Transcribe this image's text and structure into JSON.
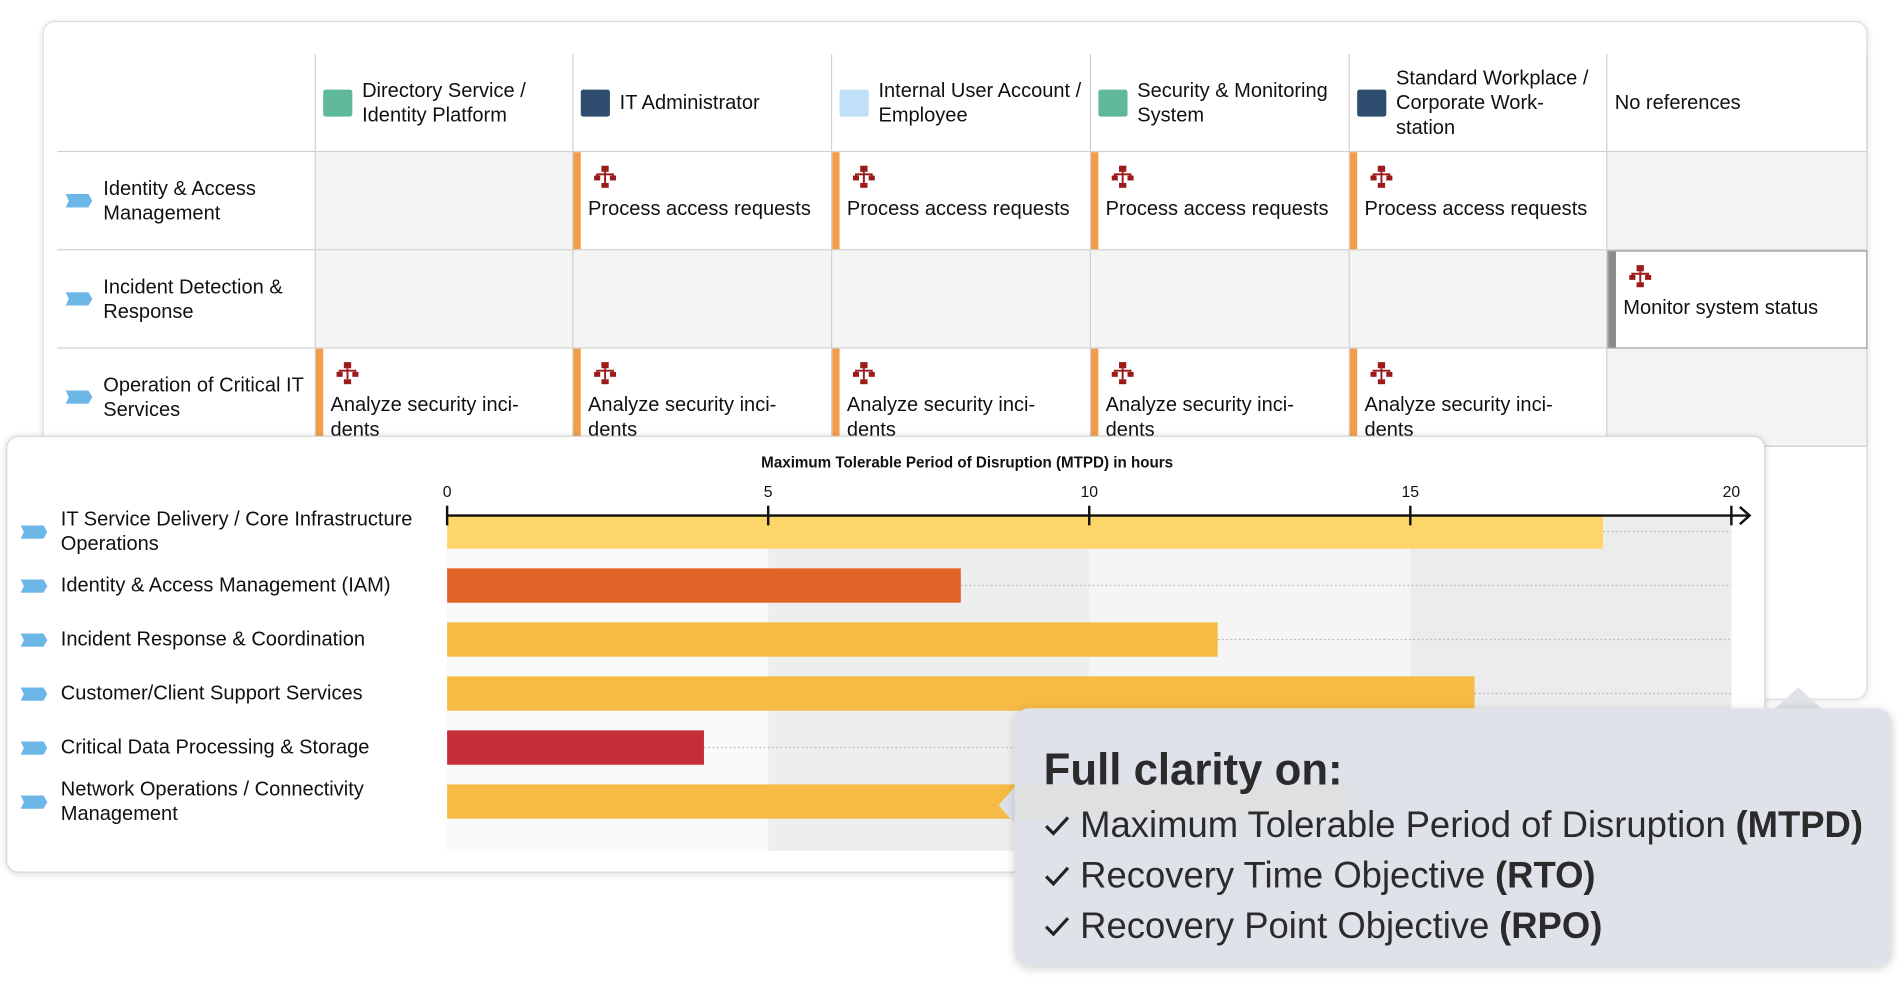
{
  "matrix": {
    "columns": [
      "Directory Service / Identity Platform",
      "IT Administrator",
      "Internal User Account / Employee",
      "Security & Monitoring System",
      "Standard Workplace / Corporate Work-station",
      "No references"
    ],
    "rows": [
      {
        "label": "Identity & Access Management",
        "cells": [
          null,
          "Process access requests",
          "Process access requests",
          "Process access requests",
          "Process access requests",
          null
        ]
      },
      {
        "label": "Incident Detection & Response",
        "cells": [
          null,
          null,
          null,
          null,
          null,
          "Monitor system status"
        ]
      },
      {
        "label": "Operation of Critical IT Services",
        "cells": [
          "Analyze security inci-dents",
          "Analyze security inci-dents",
          "Analyze security inci-dents",
          "Analyze security inci-dents",
          "Analyze security inci-dents",
          null
        ]
      }
    ]
  },
  "chart_data": {
    "type": "bar",
    "orientation": "horizontal",
    "title": "Maximum Tolerable Period of Disruption (MTPD) in hours",
    "categories": [
      "IT Service Delivery / Core Infrastructure Operations",
      "Identity & Access Management (IAM)",
      "Incident Response & Coordination",
      "Customer/Client Support Services",
      "Critical Data Processing & Storage",
      "Network Operations / Connectivity Management"
    ],
    "values": [
      18,
      8,
      12,
      16,
      4,
      14
    ],
    "colors": [
      "#fdd66a",
      "#e06428",
      "#f6bb45",
      "#f6bb45",
      "#c82e3a",
      "#f6bb45"
    ],
    "xlim": [
      0,
      20
    ],
    "xticks": [
      0,
      5,
      10,
      15,
      20
    ]
  },
  "callout": {
    "title": "Full clarity on:",
    "items": [
      {
        "text": "Maximum Tolerable Period of Disruption",
        "bold": "(MTPD)"
      },
      {
        "text": "Recovery Time Objective",
        "bold": "(RTO)"
      },
      {
        "text": "Recovery Point Objective",
        "bold": "(RPO)"
      }
    ]
  }
}
